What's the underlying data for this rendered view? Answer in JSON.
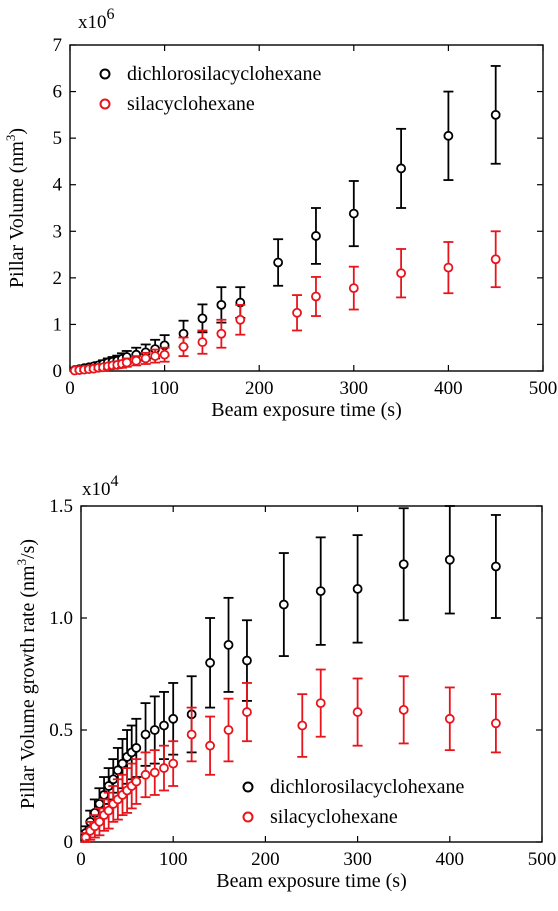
{
  "chart_data": [
    {
      "type": "scatter",
      "title": "",
      "xlabel": "Beam exposure time (s)",
      "ylabel": "Pillar Volume (nm³)",
      "ylabel_main": "Pillar Volume (nm",
      "ylabel_sup": "3",
      "ylabel_end": ")",
      "multiplier_base": "x10",
      "multiplier_exp": "6",
      "xlim": [
        0,
        500
      ],
      "ylim": [
        0,
        7
      ],
      "xticks": [
        0,
        100,
        200,
        300,
        400,
        500
      ],
      "yticks": [
        0,
        1,
        2,
        3,
        4,
        5,
        6,
        7
      ],
      "legend_position": "top-left",
      "grid": false,
      "series": [
        {
          "name": "dichlorosilacyclohexane",
          "color": "#000000",
          "x": [
            5,
            10,
            15,
            20,
            25,
            30,
            35,
            40,
            45,
            50,
            55,
            60,
            70,
            80,
            90,
            100,
            120,
            140,
            160,
            180,
            220,
            260,
            300,
            350,
            400,
            450
          ],
          "y": [
            0.02,
            0.04,
            0.06,
            0.08,
            0.1,
            0.12,
            0.15,
            0.18,
            0.2,
            0.22,
            0.26,
            0.3,
            0.35,
            0.4,
            0.47,
            0.55,
            0.8,
            1.13,
            1.42,
            1.47,
            2.33,
            2.9,
            3.38,
            4.35,
            5.05,
            5.5
          ],
          "err": [
            0.02,
            0.03,
            0.04,
            0.05,
            0.06,
            0.07,
            0.08,
            0.09,
            0.1,
            0.11,
            0.12,
            0.13,
            0.15,
            0.17,
            0.2,
            0.22,
            0.28,
            0.3,
            0.38,
            0.33,
            0.5,
            0.6,
            0.7,
            0.85,
            0.95,
            1.05
          ]
        },
        {
          "name": "silacyclohexane",
          "color": "#e8141c",
          "x": [
            5,
            10,
            15,
            20,
            25,
            30,
            35,
            40,
            45,
            50,
            55,
            60,
            70,
            80,
            90,
            100,
            120,
            140,
            160,
            180,
            240,
            260,
            300,
            350,
            400,
            450
          ],
          "y": [
            0.01,
            0.02,
            0.03,
            0.04,
            0.05,
            0.07,
            0.08,
            0.1,
            0.12,
            0.13,
            0.15,
            0.18,
            0.22,
            0.27,
            0.32,
            0.35,
            0.52,
            0.62,
            0.8,
            1.1,
            1.25,
            1.6,
            1.78,
            2.1,
            2.22,
            2.4
          ],
          "err": [
            0.01,
            0.02,
            0.03,
            0.03,
            0.04,
            0.04,
            0.05,
            0.06,
            0.07,
            0.07,
            0.08,
            0.09,
            0.1,
            0.12,
            0.14,
            0.15,
            0.2,
            0.25,
            0.3,
            0.32,
            0.38,
            0.42,
            0.46,
            0.52,
            0.55,
            0.6
          ]
        }
      ]
    },
    {
      "type": "scatter",
      "title": "",
      "xlabel": "Beam exposure time (s)",
      "ylabel": "Pillar Volume growth rate (nm³/s)",
      "ylabel_main": "Pillar Volume growth rate (nm",
      "ylabel_sup": "3",
      "ylabel_end": "/s)",
      "multiplier_base": "x10",
      "multiplier_exp": "4",
      "xlim": [
        0,
        500
      ],
      "ylim": [
        0,
        1.5
      ],
      "xticks": [
        0,
        100,
        200,
        300,
        400,
        500
      ],
      "yticks": [
        0,
        0.5,
        1.0,
        1.5
      ],
      "ytick_labels": [
        "0",
        "0.5",
        "1.0",
        "1.5"
      ],
      "legend_position": "bottom-right",
      "grid": false,
      "series": [
        {
          "name": "dichlorosilacyclohexane",
          "color": "#000000",
          "x": [
            5,
            10,
            15,
            20,
            25,
            30,
            35,
            40,
            45,
            50,
            55,
            60,
            70,
            80,
            90,
            100,
            120,
            140,
            160,
            180,
            220,
            260,
            300,
            350,
            400,
            450
          ],
          "y": [
            0.04,
            0.09,
            0.13,
            0.17,
            0.21,
            0.25,
            0.28,
            0.32,
            0.35,
            0.38,
            0.4,
            0.42,
            0.48,
            0.5,
            0.52,
            0.55,
            0.57,
            0.8,
            0.88,
            0.81,
            1.06,
            1.12,
            1.13,
            1.24,
            1.26,
            1.23
          ],
          "err": [
            0.03,
            0.05,
            0.06,
            0.07,
            0.08,
            0.08,
            0.09,
            0.1,
            0.11,
            0.12,
            0.12,
            0.13,
            0.14,
            0.15,
            0.15,
            0.16,
            0.17,
            0.2,
            0.21,
            0.18,
            0.23,
            0.24,
            0.24,
            0.25,
            0.24,
            0.23
          ]
        },
        {
          "name": "silacyclohexane",
          "color": "#e8141c",
          "x": [
            5,
            10,
            15,
            20,
            25,
            30,
            35,
            40,
            45,
            50,
            55,
            60,
            70,
            80,
            90,
            100,
            120,
            140,
            160,
            180,
            240,
            260,
            300,
            350,
            400,
            450
          ],
          "y": [
            0.02,
            0.05,
            0.07,
            0.09,
            0.12,
            0.14,
            0.17,
            0.19,
            0.21,
            0.23,
            0.25,
            0.27,
            0.3,
            0.31,
            0.33,
            0.35,
            0.48,
            0.43,
            0.5,
            0.58,
            0.52,
            0.62,
            0.58,
            0.59,
            0.55,
            0.53
          ],
          "err": [
            0.02,
            0.04,
            0.05,
            0.06,
            0.07,
            0.08,
            0.08,
            0.09,
            0.09,
            0.1,
            0.1,
            0.1,
            0.1,
            0.1,
            0.1,
            0.1,
            0.12,
            0.13,
            0.14,
            0.13,
            0.14,
            0.15,
            0.15,
            0.15,
            0.14,
            0.13
          ]
        }
      ]
    }
  ]
}
